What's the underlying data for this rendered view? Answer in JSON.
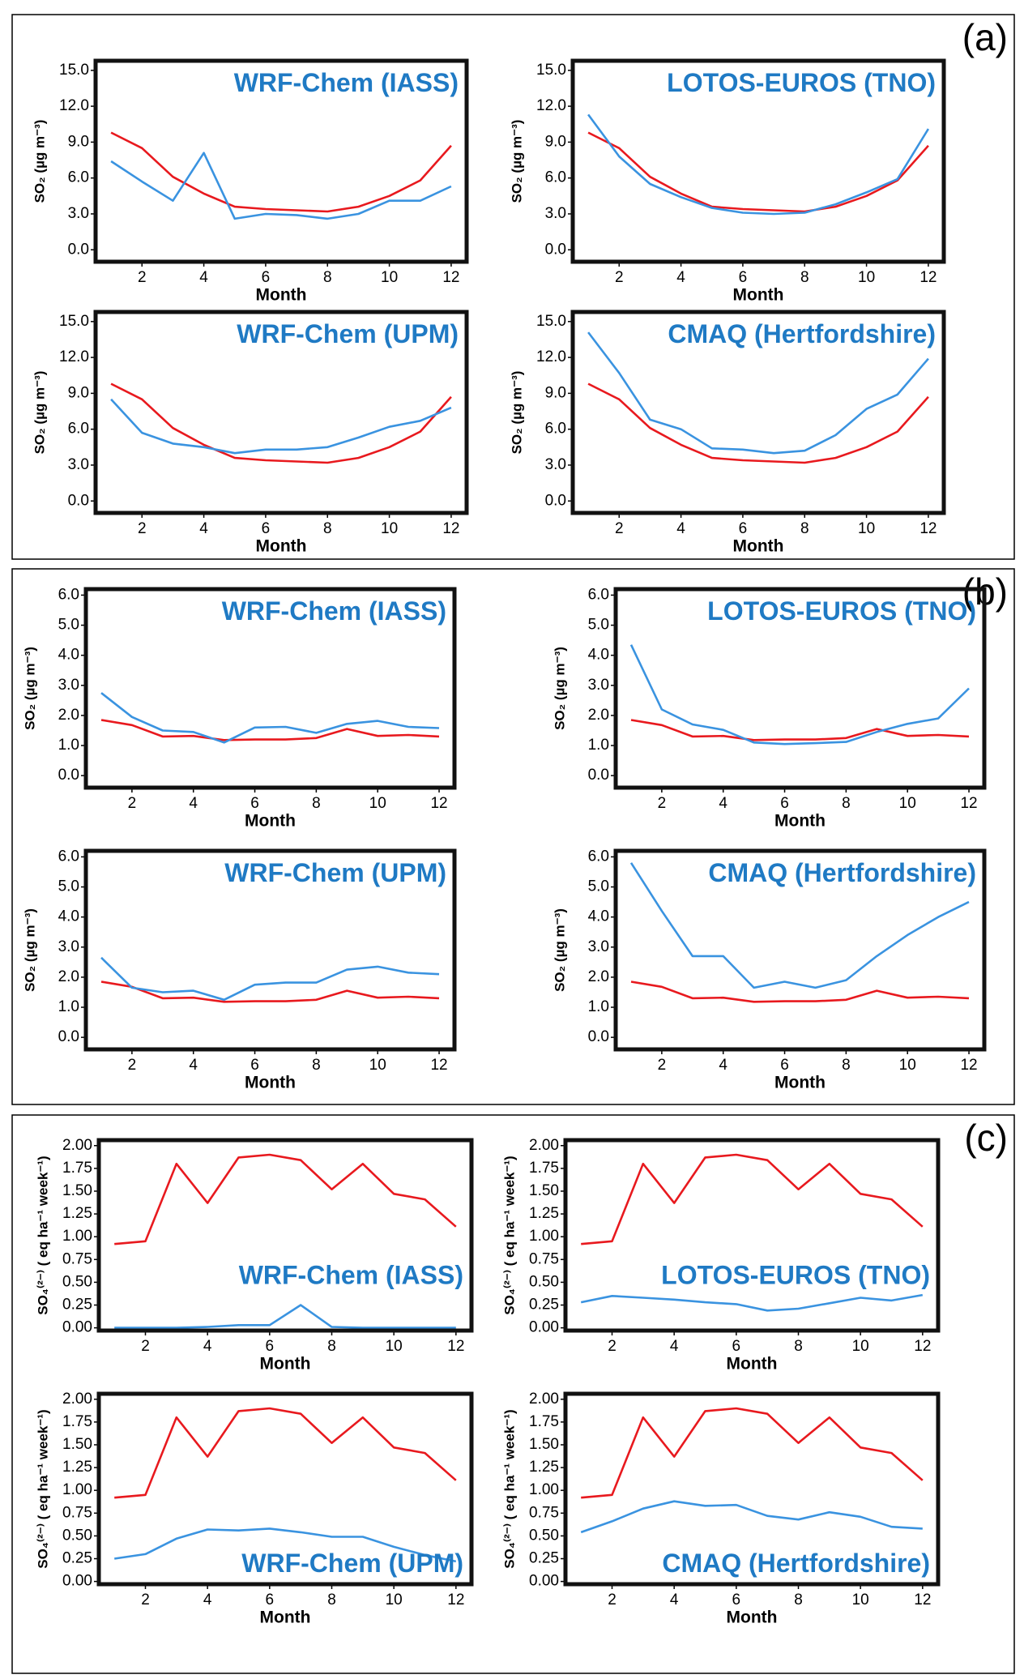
{
  "panel_labels": [
    "(a)",
    "(b)",
    "(c)"
  ],
  "chart_data": [
    {
      "type": "line",
      "title": "WRF-Chem (IASS)",
      "y_label": "SO₂ (µg m⁻³)",
      "x_label": "Month",
      "x": [
        1,
        2,
        3,
        4,
        5,
        6,
        7,
        8,
        9,
        10,
        11,
        12
      ],
      "xlim": [
        0.5,
        12.5
      ],
      "xticks": [
        2,
        4,
        6,
        8,
        10,
        12
      ],
      "ylim": [
        -1,
        15.8
      ],
      "yticks": [
        {
          "value": 0,
          "label": "0.0"
        },
        {
          "value": 3,
          "label": "3.0"
        },
        {
          "value": 6,
          "label": "6.0"
        },
        {
          "value": 9,
          "label": "9.0"
        },
        {
          "value": 12,
          "label": "12.0"
        },
        {
          "value": 15,
          "label": "15.0"
        }
      ],
      "series": [
        {
          "color": "#e8191e",
          "values": [
            9.8,
            8.5,
            6.1,
            4.7,
            3.6,
            3.4,
            3.3,
            3.2,
            3.6,
            4.5,
            5.8,
            8.7
          ]
        },
        {
          "color": "#3a93e0",
          "values": [
            7.4,
            5.7,
            4.1,
            8.1,
            2.6,
            3.0,
            2.9,
            2.6,
            3.0,
            4.1,
            4.1,
            5.3
          ]
        }
      ]
    },
    {
      "type": "line",
      "title": "LOTOS-EUROS (TNO)",
      "y_label": "SO₂ (µg m⁻³)",
      "x_label": "Month",
      "x": [
        1,
        2,
        3,
        4,
        5,
        6,
        7,
        8,
        9,
        10,
        11,
        12
      ],
      "xlim": [
        0.5,
        12.5
      ],
      "xticks": [
        2,
        4,
        6,
        8,
        10,
        12
      ],
      "ylim": [
        -1,
        15.8
      ],
      "yticks": [
        {
          "value": 0,
          "label": "0.0"
        },
        {
          "value": 3,
          "label": "3.0"
        },
        {
          "value": 6,
          "label": "6.0"
        },
        {
          "value": 9,
          "label": "9.0"
        },
        {
          "value": 12,
          "label": "12.0"
        },
        {
          "value": 15,
          "label": "15.0"
        }
      ],
      "series": [
        {
          "color": "#e8191e",
          "values": [
            9.8,
            8.5,
            6.1,
            4.7,
            3.6,
            3.4,
            3.3,
            3.2,
            3.6,
            4.5,
            5.8,
            8.7
          ]
        },
        {
          "color": "#3a93e0",
          "values": [
            11.3,
            7.8,
            5.5,
            4.4,
            3.5,
            3.1,
            3.0,
            3.1,
            3.8,
            4.8,
            5.9,
            10.1
          ]
        }
      ]
    },
    {
      "type": "line",
      "title": "WRF-Chem (UPM)",
      "y_label": "SO₂ (µg m⁻³)",
      "x_label": "Month",
      "x": [
        1,
        2,
        3,
        4,
        5,
        6,
        7,
        8,
        9,
        10,
        11,
        12
      ],
      "xlim": [
        0.5,
        12.5
      ],
      "xticks": [
        2,
        4,
        6,
        8,
        10,
        12
      ],
      "ylim": [
        -1,
        15.8
      ],
      "yticks": [
        {
          "value": 0,
          "label": "0.0"
        },
        {
          "value": 3,
          "label": "3.0"
        },
        {
          "value": 6,
          "label": "6.0"
        },
        {
          "value": 9,
          "label": "9.0"
        },
        {
          "value": 12,
          "label": "12.0"
        },
        {
          "value": 15,
          "label": "15.0"
        }
      ],
      "series": [
        {
          "color": "#e8191e",
          "values": [
            9.8,
            8.5,
            6.1,
            4.7,
            3.6,
            3.4,
            3.3,
            3.2,
            3.6,
            4.5,
            5.8,
            8.7
          ]
        },
        {
          "color": "#3a93e0",
          "values": [
            8.5,
            5.7,
            4.8,
            4.5,
            4.0,
            4.3,
            4.3,
            4.5,
            5.3,
            6.2,
            6.7,
            7.8
          ]
        }
      ]
    },
    {
      "type": "line",
      "title": "CMAQ (Hertfordshire)",
      "y_label": "SO₂ (µg m⁻³)",
      "x_label": "Month",
      "x": [
        1,
        2,
        3,
        4,
        5,
        6,
        7,
        8,
        9,
        10,
        11,
        12
      ],
      "xlim": [
        0.5,
        12.5
      ],
      "xticks": [
        2,
        4,
        6,
        8,
        10,
        12
      ],
      "ylim": [
        -1,
        15.8
      ],
      "yticks": [
        {
          "value": 0,
          "label": "0.0"
        },
        {
          "value": 3,
          "label": "3.0"
        },
        {
          "value": 6,
          "label": "6.0"
        },
        {
          "value": 9,
          "label": "9.0"
        },
        {
          "value": 12,
          "label": "12.0"
        },
        {
          "value": 15,
          "label": "15.0"
        }
      ],
      "series": [
        {
          "color": "#e8191e",
          "values": [
            9.8,
            8.5,
            6.1,
            4.7,
            3.6,
            3.4,
            3.3,
            3.2,
            3.6,
            4.5,
            5.8,
            8.7
          ]
        },
        {
          "color": "#3a93e0",
          "values": [
            14.1,
            10.7,
            6.8,
            6.0,
            4.4,
            4.3,
            4.0,
            4.2,
            5.5,
            7.7,
            8.9,
            11.9
          ]
        }
      ]
    },
    {
      "type": "line",
      "title": "WRF-Chem (IASS)",
      "y_label": "SO₂ (µg m⁻³)",
      "x_label": "Month",
      "x": [
        1,
        2,
        3,
        4,
        5,
        6,
        7,
        8,
        9,
        10,
        11,
        12
      ],
      "xlim": [
        0.5,
        12.5
      ],
      "xticks": [
        2,
        4,
        6,
        8,
        10,
        12
      ],
      "ylim": [
        -0.4,
        6.2
      ],
      "yticks": [
        {
          "value": 0,
          "label": "0.0"
        },
        {
          "value": 1,
          "label": "1.0"
        },
        {
          "value": 2,
          "label": "2.0"
        },
        {
          "value": 3,
          "label": "3.0"
        },
        {
          "value": 4,
          "label": "4.0"
        },
        {
          "value": 5,
          "label": "5.0"
        },
        {
          "value": 6,
          "label": "6.0"
        }
      ],
      "series": [
        {
          "color": "#e8191e",
          "values": [
            1.85,
            1.68,
            1.3,
            1.32,
            1.18,
            1.2,
            1.2,
            1.25,
            1.55,
            1.32,
            1.35,
            1.3
          ]
        },
        {
          "color": "#3a93e0",
          "values": [
            2.75,
            1.95,
            1.5,
            1.45,
            1.1,
            1.6,
            1.62,
            1.42,
            1.72,
            1.82,
            1.62,
            1.58
          ]
        }
      ]
    },
    {
      "type": "line",
      "title": "LOTOS-EUROS (TNO)",
      "y_label": "SO₂ (µg m⁻³)",
      "x_label": "Month",
      "x": [
        1,
        2,
        3,
        4,
        5,
        6,
        7,
        8,
        9,
        10,
        11,
        12
      ],
      "xlim": [
        0.5,
        12.5
      ],
      "xticks": [
        2,
        4,
        6,
        8,
        10,
        12
      ],
      "ylim": [
        -0.4,
        6.2
      ],
      "yticks": [
        {
          "value": 0,
          "label": "0.0"
        },
        {
          "value": 1,
          "label": "1.0"
        },
        {
          "value": 2,
          "label": "2.0"
        },
        {
          "value": 3,
          "label": "3.0"
        },
        {
          "value": 4,
          "label": "4.0"
        },
        {
          "value": 5,
          "label": "5.0"
        },
        {
          "value": 6,
          "label": "6.0"
        }
      ],
      "series": [
        {
          "color": "#e8191e",
          "values": [
            1.85,
            1.68,
            1.3,
            1.32,
            1.18,
            1.2,
            1.2,
            1.25,
            1.55,
            1.32,
            1.35,
            1.3
          ]
        },
        {
          "color": "#3a93e0",
          "values": [
            4.35,
            2.2,
            1.7,
            1.52,
            1.1,
            1.05,
            1.08,
            1.12,
            1.45,
            1.72,
            1.9,
            2.9
          ]
        }
      ]
    },
    {
      "type": "line",
      "title": "WRF-Chem (UPM)",
      "y_label": "SO₂ (µg m⁻³)",
      "x_label": "Month",
      "x": [
        1,
        2,
        3,
        4,
        5,
        6,
        7,
        8,
        9,
        10,
        11,
        12
      ],
      "xlim": [
        0.5,
        12.5
      ],
      "xticks": [
        2,
        4,
        6,
        8,
        10,
        12
      ],
      "ylim": [
        -0.4,
        6.2
      ],
      "yticks": [
        {
          "value": 0,
          "label": "0.0"
        },
        {
          "value": 1,
          "label": "1.0"
        },
        {
          "value": 2,
          "label": "2.0"
        },
        {
          "value": 3,
          "label": "3.0"
        },
        {
          "value": 4,
          "label": "4.0"
        },
        {
          "value": 5,
          "label": "5.0"
        },
        {
          "value": 6,
          "label": "6.0"
        }
      ],
      "series": [
        {
          "color": "#e8191e",
          "values": [
            1.85,
            1.68,
            1.3,
            1.32,
            1.18,
            1.2,
            1.2,
            1.25,
            1.55,
            1.32,
            1.35,
            1.3
          ]
        },
        {
          "color": "#3a93e0",
          "values": [
            2.65,
            1.65,
            1.5,
            1.55,
            1.25,
            1.75,
            1.82,
            1.82,
            2.25,
            2.35,
            2.15,
            2.1
          ]
        }
      ]
    },
    {
      "type": "line",
      "title": "CMAQ (Hertfordshire)",
      "y_label": "SO₂ (µg m⁻³)",
      "x_label": "Month",
      "x": [
        1,
        2,
        3,
        4,
        5,
        6,
        7,
        8,
        9,
        10,
        11,
        12
      ],
      "xlim": [
        0.5,
        12.5
      ],
      "xticks": [
        2,
        4,
        6,
        8,
        10,
        12
      ],
      "ylim": [
        -0.4,
        6.2
      ],
      "yticks": [
        {
          "value": 0,
          "label": "0.0"
        },
        {
          "value": 1,
          "label": "1.0"
        },
        {
          "value": 2,
          "label": "2.0"
        },
        {
          "value": 3,
          "label": "3.0"
        },
        {
          "value": 4,
          "label": "4.0"
        },
        {
          "value": 5,
          "label": "5.0"
        },
        {
          "value": 6,
          "label": "6.0"
        }
      ],
      "series": [
        {
          "color": "#e8191e",
          "values": [
            1.85,
            1.68,
            1.3,
            1.32,
            1.18,
            1.2,
            1.2,
            1.25,
            1.55,
            1.32,
            1.35,
            1.3
          ]
        },
        {
          "color": "#3a93e0",
          "values": [
            5.8,
            4.2,
            2.7,
            2.7,
            1.65,
            1.85,
            1.65,
            1.9,
            2.7,
            3.4,
            4.0,
            4.5
          ]
        }
      ]
    },
    {
      "type": "line",
      "title": "WRF-Chem (IASS)",
      "y_label": "SO₄⁽²⁻⁾ ( eq ha⁻¹ week⁻¹)",
      "x_label": "Month",
      "x": [
        1,
        2,
        3,
        4,
        5,
        6,
        7,
        8,
        9,
        10,
        11,
        12
      ],
      "xlim": [
        0.5,
        12.5
      ],
      "xticks": [
        2,
        4,
        6,
        8,
        10,
        12
      ],
      "ylim": [
        -0.03,
        2.06
      ],
      "yticks": [
        {
          "value": 0,
          "label": "0.00"
        },
        {
          "value": 0.25,
          "label": "0.25"
        },
        {
          "value": 0.5,
          "label": "0.50"
        },
        {
          "value": 0.75,
          "label": "0.75"
        },
        {
          "value": 1,
          "label": "1.00"
        },
        {
          "value": 1.25,
          "label": "1.25"
        },
        {
          "value": 1.5,
          "label": "1.50"
        },
        {
          "value": 1.75,
          "label": "1.75"
        },
        {
          "value": 2,
          "label": "2.00"
        }
      ],
      "series": [
        {
          "color": "#e8191e",
          "values": [
            0.92,
            0.95,
            1.8,
            1.37,
            1.87,
            1.9,
            1.84,
            1.52,
            1.8,
            1.47,
            1.41,
            1.11
          ]
        },
        {
          "color": "#3a93e0",
          "values": [
            0,
            0,
            0,
            0.01,
            0.03,
            0.03,
            0.25,
            0.01,
            0,
            0,
            0,
            0
          ]
        }
      ]
    },
    {
      "type": "line",
      "title": "LOTOS-EUROS (TNO)",
      "y_label": "SO₄⁽²⁻⁾ ( eq ha⁻¹ week⁻¹)",
      "x_label": "Month",
      "x": [
        1,
        2,
        3,
        4,
        5,
        6,
        7,
        8,
        9,
        10,
        11,
        12
      ],
      "xlim": [
        0.5,
        12.5
      ],
      "xticks": [
        2,
        4,
        6,
        8,
        10,
        12
      ],
      "ylim": [
        -0.03,
        2.06
      ],
      "yticks": [
        {
          "value": 0,
          "label": "0.00"
        },
        {
          "value": 0.25,
          "label": "0.25"
        },
        {
          "value": 0.5,
          "label": "0.50"
        },
        {
          "value": 0.75,
          "label": "0.75"
        },
        {
          "value": 1,
          "label": "1.00"
        },
        {
          "value": 1.25,
          "label": "1.25"
        },
        {
          "value": 1.5,
          "label": "1.50"
        },
        {
          "value": 1.75,
          "label": "1.75"
        },
        {
          "value": 2,
          "label": "2.00"
        }
      ],
      "series": [
        {
          "color": "#e8191e",
          "values": [
            0.92,
            0.95,
            1.8,
            1.37,
            1.87,
            1.9,
            1.84,
            1.52,
            1.8,
            1.47,
            1.41,
            1.11
          ]
        },
        {
          "color": "#3a93e0",
          "values": [
            0.28,
            0.35,
            0.33,
            0.31,
            0.28,
            0.26,
            0.19,
            0.21,
            0.27,
            0.33,
            0.3,
            0.36
          ]
        }
      ]
    },
    {
      "type": "line",
      "title": "WRF-Chem (UPM)",
      "y_label": "SO₄⁽²⁻⁾ ( eq ha⁻¹ week⁻¹)",
      "x_label": "Month",
      "x": [
        1,
        2,
        3,
        4,
        5,
        6,
        7,
        8,
        9,
        10,
        11,
        12
      ],
      "xlim": [
        0.5,
        12.5
      ],
      "xticks": [
        2,
        4,
        6,
        8,
        10,
        12
      ],
      "ylim": [
        -0.03,
        2.06
      ],
      "yticks": [
        {
          "value": 0,
          "label": "0.00"
        },
        {
          "value": 0.25,
          "label": "0.25"
        },
        {
          "value": 0.5,
          "label": "0.50"
        },
        {
          "value": 0.75,
          "label": "0.75"
        },
        {
          "value": 1,
          "label": "1.00"
        },
        {
          "value": 1.25,
          "label": "1.25"
        },
        {
          "value": 1.5,
          "label": "1.50"
        },
        {
          "value": 1.75,
          "label": "1.75"
        },
        {
          "value": 2,
          "label": "2.00"
        }
      ],
      "series": [
        {
          "color": "#e8191e",
          "values": [
            0.92,
            0.95,
            1.8,
            1.37,
            1.87,
            1.9,
            1.84,
            1.52,
            1.8,
            1.47,
            1.41,
            1.11
          ]
        },
        {
          "color": "#3a93e0",
          "values": [
            0.25,
            0.3,
            0.47,
            0.57,
            0.56,
            0.58,
            0.54,
            0.49,
            0.49,
            0.38,
            0.29,
            0.22
          ]
        }
      ]
    },
    {
      "type": "line",
      "title": "CMAQ (Hertfordshire)",
      "y_label": "SO₄⁽²⁻⁾ ( eq ha⁻¹ week⁻¹)",
      "x_label": "Month",
      "x": [
        1,
        2,
        3,
        4,
        5,
        6,
        7,
        8,
        9,
        10,
        11,
        12
      ],
      "xlim": [
        0.5,
        12.5
      ],
      "xticks": [
        2,
        4,
        6,
        8,
        10,
        12
      ],
      "ylim": [
        -0.03,
        2.06
      ],
      "yticks": [
        {
          "value": 0,
          "label": "0.00"
        },
        {
          "value": 0.25,
          "label": "0.25"
        },
        {
          "value": 0.5,
          "label": "0.50"
        },
        {
          "value": 0.75,
          "label": "0.75"
        },
        {
          "value": 1,
          "label": "1.00"
        },
        {
          "value": 1.25,
          "label": "1.25"
        },
        {
          "value": 1.5,
          "label": "1.50"
        },
        {
          "value": 1.75,
          "label": "1.75"
        },
        {
          "value": 2,
          "label": "2.00"
        }
      ],
      "series": [
        {
          "color": "#e8191e",
          "values": [
            0.92,
            0.95,
            1.8,
            1.37,
            1.87,
            1.9,
            1.84,
            1.52,
            1.8,
            1.47,
            1.41,
            1.11
          ]
        },
        {
          "color": "#3a93e0",
          "values": [
            0.54,
            0.66,
            0.8,
            0.88,
            0.83,
            0.84,
            0.72,
            0.68,
            0.76,
            0.71,
            0.6,
            0.58
          ]
        }
      ]
    }
  ]
}
